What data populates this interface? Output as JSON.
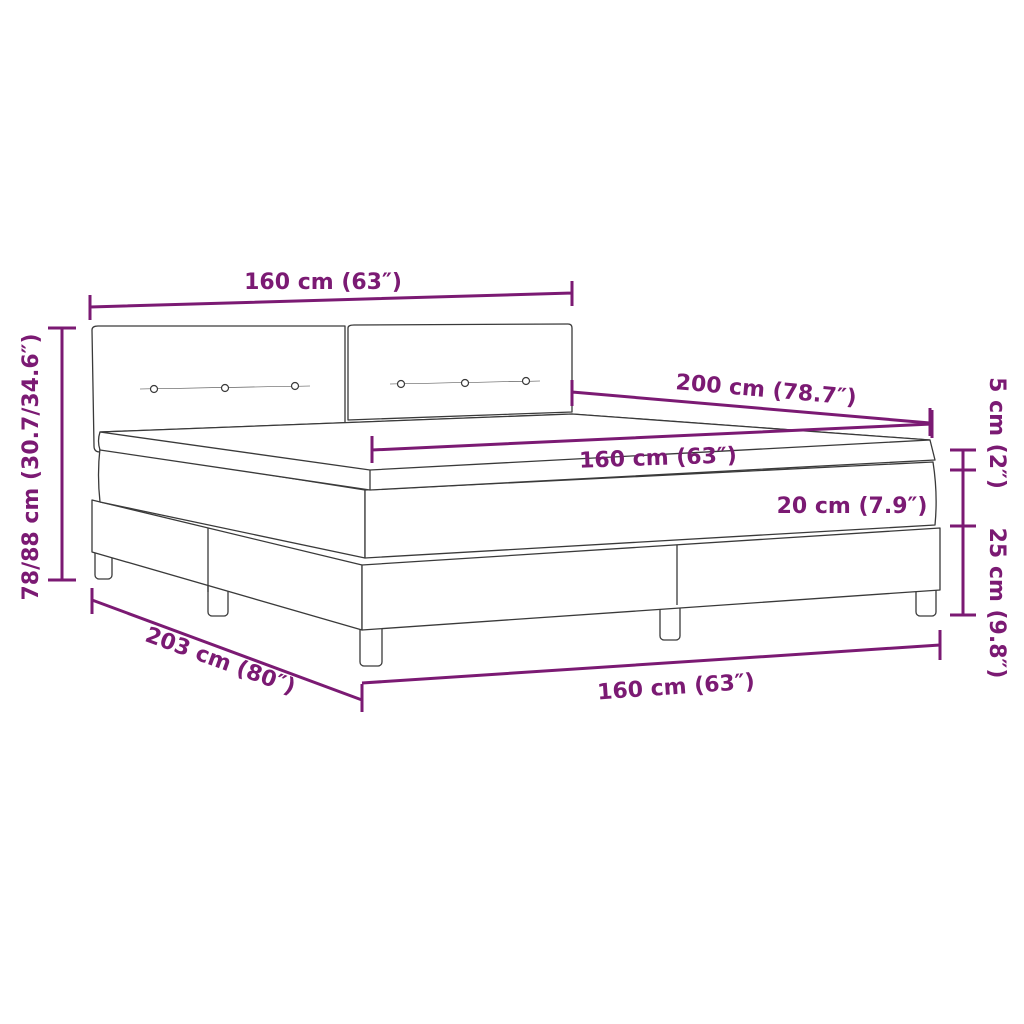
{
  "colors": {
    "dimension": "#7b1a73",
    "outline": "#3a3a3a"
  },
  "labels": {
    "headboard_width": "160 cm (63″)",
    "length": "200 cm (78.7″)",
    "mattress_width": "160 cm (63″)",
    "mattress_height": "20 cm (7.9″)",
    "topper_height": "5 cm (2″)",
    "base_height": "25 cm (9.8″)",
    "total_height": "78/88 cm (30.7/34.6″)",
    "total_length": "203 cm (80″)",
    "base_width": "160 cm (63″)"
  }
}
